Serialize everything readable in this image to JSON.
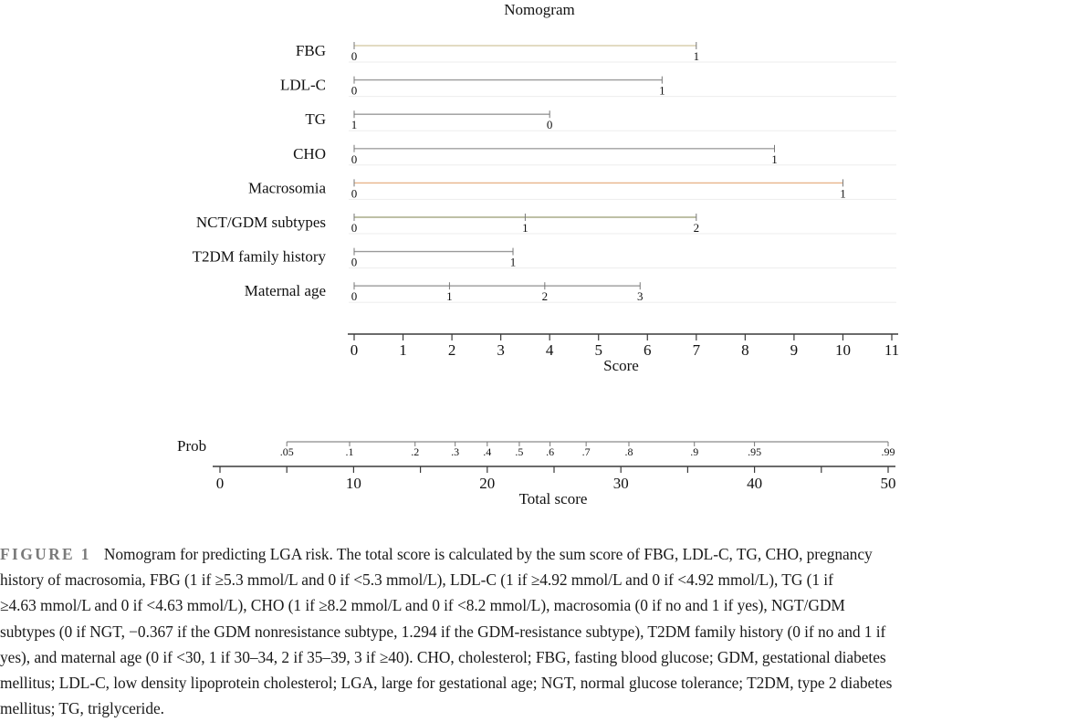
{
  "chart_data": {
    "type": "nomogram",
    "title": "Nomogram",
    "rows": [
      {
        "label": "FBG",
        "color": "#d8cfae",
        "ticks": [
          {
            "label": "0",
            "points": 0
          },
          {
            "label": "1",
            "points": 7.0
          }
        ]
      },
      {
        "label": "LDL-C",
        "color": "#9a9a9a",
        "ticks": [
          {
            "label": "0",
            "points": 0
          },
          {
            "label": "1",
            "points": 6.3
          }
        ]
      },
      {
        "label": "TG",
        "color": "#9a9a9a",
        "ticks": [
          {
            "label": "1",
            "points": 0
          },
          {
            "label": "0",
            "points": 4.0
          }
        ]
      },
      {
        "label": "CHO",
        "color": "#a0a0a0",
        "ticks": [
          {
            "label": "0",
            "points": 0
          },
          {
            "label": "1",
            "points": 8.6
          }
        ]
      },
      {
        "label": "Macrosomia",
        "color": "#e8b48a",
        "ticks": [
          {
            "label": "0",
            "points": 0
          },
          {
            "label": "1",
            "points": 10.0
          }
        ]
      },
      {
        "label": "NCT/GDM subtypes",
        "color": "#a8ac88",
        "ticks": [
          {
            "label": "0",
            "points": 0
          },
          {
            "label": "1",
            "points": 3.5
          },
          {
            "label": "2",
            "points": 7.0
          }
        ]
      },
      {
        "label": "T2DM family history",
        "color": "#9a9a9a",
        "ticks": [
          {
            "label": "0",
            "points": 0
          },
          {
            "label": "1",
            "points": 3.25
          }
        ]
      },
      {
        "label": "Maternal age",
        "color": "#9a9a9a",
        "ticks": [
          {
            "label": "0",
            "points": 0
          },
          {
            "label": "1",
            "points": 1.95
          },
          {
            "label": "2",
            "points": 3.9
          },
          {
            "label": "3",
            "points": 5.85
          }
        ]
      }
    ],
    "score_axis": {
      "label": "Score",
      "min": 0,
      "max": 11,
      "ticks": [
        "0",
        "1",
        "2",
        "3",
        "4",
        "5",
        "6",
        "7",
        "8",
        "9",
        "10",
        "11"
      ]
    },
    "prob_axis": {
      "label": "Prob",
      "ticks": [
        {
          "label": ".05",
          "total": 5.0
        },
        {
          "label": ".1",
          "total": 9.7
        },
        {
          "label": ".2",
          "total": 14.6
        },
        {
          "label": ".3",
          "total": 17.6
        },
        {
          "label": ".4",
          "total": 20.0
        },
        {
          "label": ".5",
          "total": 22.4
        },
        {
          "label": ".6",
          "total": 24.7
        },
        {
          "label": ".7",
          "total": 27.4
        },
        {
          "label": ".8",
          "total": 30.6
        },
        {
          "label": ".9",
          "total": 35.5
        },
        {
          "label": ".95",
          "total": 40.0
        },
        {
          "label": ".99",
          "total": 50.0
        }
      ]
    },
    "total_axis": {
      "label": "Total score",
      "min": 0,
      "max": 50,
      "labeled_ticks": [
        "0",
        "10",
        "20",
        "30",
        "40",
        "50"
      ],
      "minor_step": 5
    },
    "grid": true,
    "grid_color": "#ededed",
    "axis_color": "#3a3a3a"
  },
  "caption": {
    "label": "FIGURE 1",
    "lines": [
      "Nomogram for predicting LGA risk. The total score is calculated by the sum score of FBG, LDL-C, TG, CHO, pregnancy",
      "history of macrosomia, FBG (1 if ≥5.3 mmol/L and 0 if <5.3 mmol/L), LDL-C (1 if ≥4.92 mmol/L and 0 if <4.92 mmol/L), TG (1 if",
      "≥4.63 mmol/L and 0 if <4.63 mmol/L), CHO (1 if ≥8.2 mmol/L and 0 if <8.2 mmol/L), macrosomia (0 if no and 1 if yes), NGT/GDM",
      "subtypes (0 if NGT, −0.367 if the GDM nonresistance subtype, 1.294 if the GDM-resistance subtype), T2DM family history (0 if no and 1 if",
      "yes), and maternal age (0 if <30, 1 if 30–34, 2 if 35–39, 3 if ≥40). CHO, cholesterol; FBG, fasting blood glucose; GDM, gestational diabetes",
      "mellitus; LDL-C, low density lipoprotein cholesterol; LGA, large for gestational age; NGT, normal glucose tolerance; T2DM, type 2 diabetes",
      "mellitus; TG, triglyceride."
    ]
  }
}
